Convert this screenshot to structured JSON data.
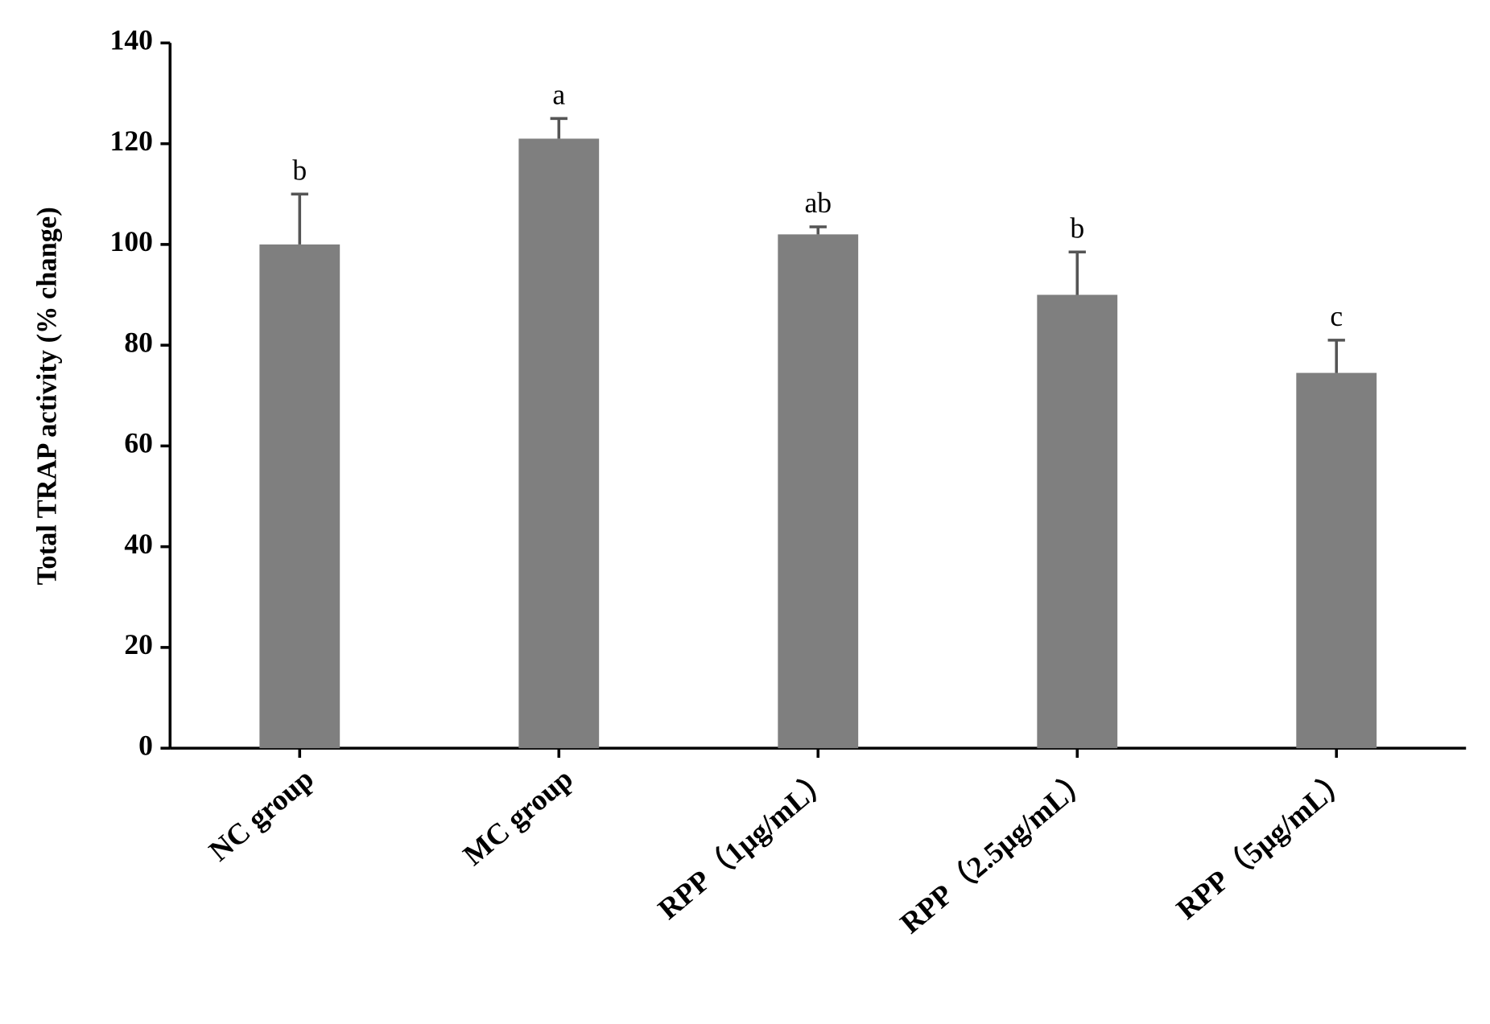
{
  "chart_data": {
    "type": "bar",
    "y_label": "Total TRAP activity (% change)",
    "categories": [
      "NC group",
      "MC group",
      "RPP（1μg/mL）",
      "RPP（2.5μg/mL）",
      "RPP（5μg/mL）"
    ],
    "values": [
      100,
      121,
      102,
      90,
      74.5
    ],
    "errors": [
      10,
      4,
      1.5,
      8.5,
      6.5
    ],
    "annotations": [
      "b",
      "a",
      "ab",
      "b",
      "c"
    ],
    "color": "#7f7f7f",
    "ylim": [
      0,
      140
    ],
    "yticks": [
      0,
      20,
      40,
      60,
      80,
      100,
      120,
      140
    ],
    "grid": false
  }
}
